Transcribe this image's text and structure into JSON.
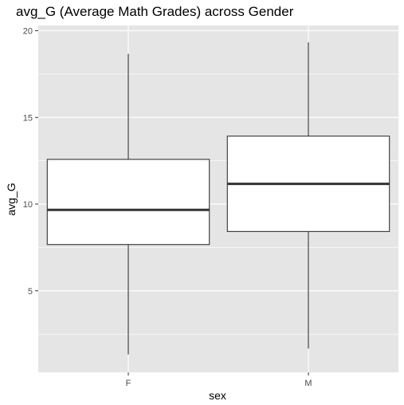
{
  "chart_data": {
    "type": "boxplot",
    "title": "avg_G (Average Math Grades) across Gender",
    "xlabel": "sex",
    "ylabel": "avg_G",
    "categories": [
      "F",
      "M"
    ],
    "boxes": [
      {
        "category": "F",
        "whisker_low": 1.33,
        "q1": 7.67,
        "median": 9.67,
        "q3": 12.58,
        "whisker_high": 18.67
      },
      {
        "category": "M",
        "whisker_low": 1.67,
        "q1": 8.42,
        "median": 11.17,
        "q3": 13.92,
        "whisker_high": 19.33
      }
    ],
    "ylim": [
      0.3,
      20.3
    ],
    "yticks": [
      5,
      10,
      15,
      20
    ],
    "grid": true,
    "panel_background": "#e5e5e5",
    "grid_color": "#ffffff",
    "box_fill": "#ffffff",
    "line_color": "#333333"
  }
}
